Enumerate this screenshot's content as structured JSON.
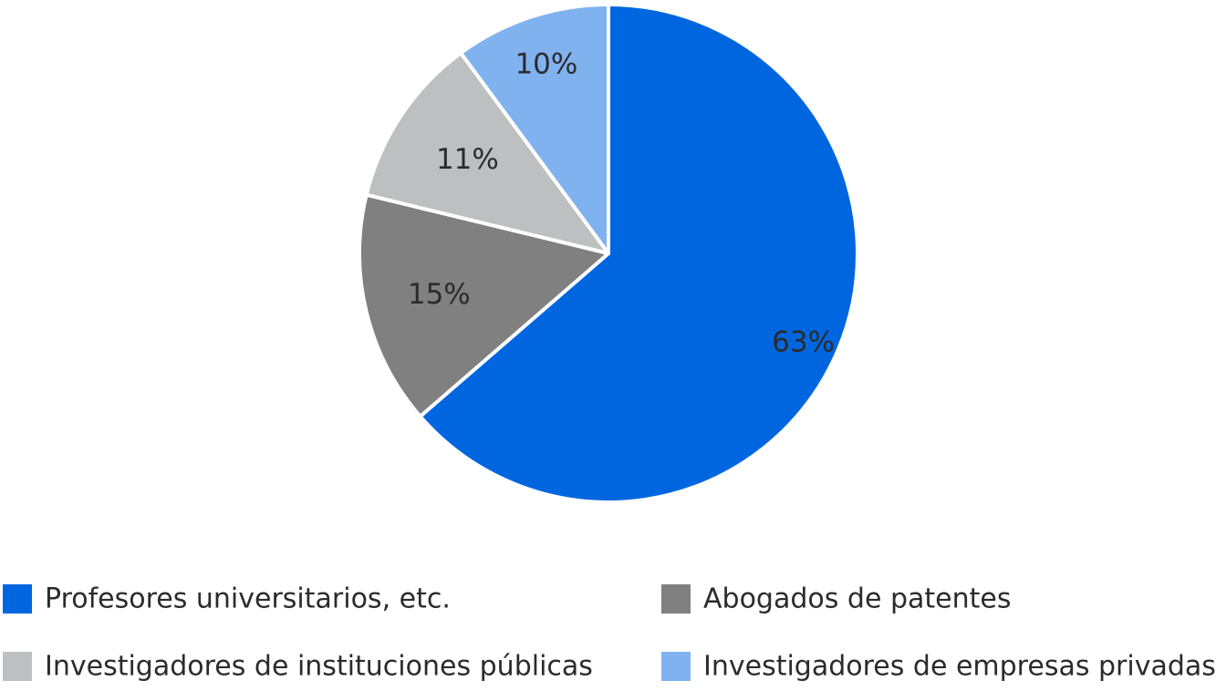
{
  "chart_data": {
    "type": "pie",
    "categories": [
      "Profesores universitarios, etc.",
      "Abogados de patentes",
      "Investigadores de instituciones públicas",
      "Investigadores de empresas privadas"
    ],
    "values": [
      63,
      15,
      11,
      10
    ],
    "value_labels": [
      "63%",
      "15%",
      "11%",
      "10%"
    ],
    "colors": [
      "#0066e0",
      "#808080",
      "#bebfc1",
      "#80b2f0"
    ],
    "start": "12 o'clock",
    "direction": "clockwise",
    "slice_border_color": "#ffffff",
    "legend": {
      "position": "bottom",
      "columns": 2
    }
  }
}
